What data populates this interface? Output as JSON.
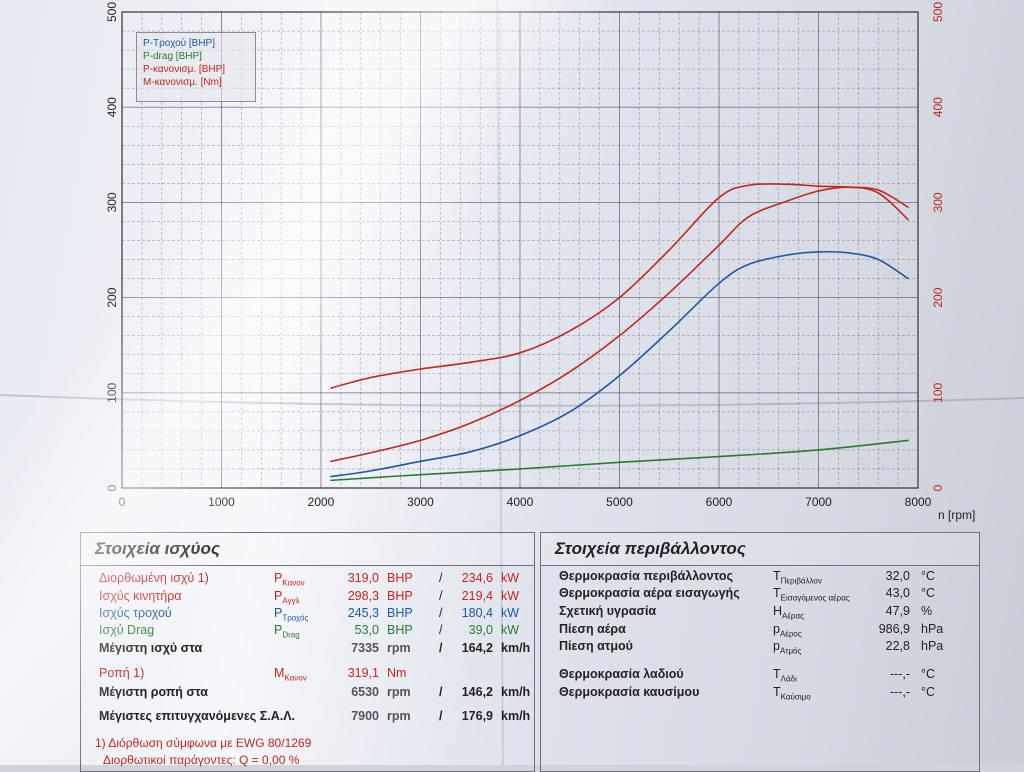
{
  "chart_data": {
    "type": "line",
    "xlabel": "n [rpm]",
    "x_ticks": [
      0,
      1000,
      2000,
      3000,
      4000,
      5000,
      6000,
      7000,
      8000
    ],
    "y_left_ticks": [
      0,
      100,
      200,
      300,
      400,
      500
    ],
    "y_right_ticks": [
      0,
      100,
      200,
      300,
      400,
      500
    ],
    "xlim": [
      0,
      8000
    ],
    "ylim": [
      0,
      500
    ],
    "grid": true,
    "legend_position": "top-left",
    "legend": [
      {
        "label": "P-Τροχού [BHP]",
        "color": "#1f56a8"
      },
      {
        "label": "P-drag [BHP]",
        "color": "#2a7b2d"
      },
      {
        "label": "P-κανονισμ. [BHP]",
        "color": "#c4261a"
      },
      {
        "label": "M-κανονισμ. [Nm]",
        "color": "#c4261a"
      }
    ],
    "series": [
      {
        "name": "P-Τροχού [BHP]",
        "color": "#1f56a8",
        "x": [
          2100,
          2500,
          3000,
          3500,
          4000,
          4500,
          5000,
          5500,
          6000,
          6300,
          6700,
          7000,
          7300,
          7600,
          7900
        ],
        "y": [
          12,
          18,
          28,
          38,
          55,
          80,
          118,
          165,
          215,
          235,
          245,
          248,
          247,
          240,
          220
        ]
      },
      {
        "name": "P-drag [BHP]",
        "color": "#2a7b2d",
        "x": [
          2100,
          3000,
          4000,
          5000,
          6000,
          7000,
          7900
        ],
        "y": [
          8,
          14,
          20,
          27,
          33,
          40,
          50
        ]
      },
      {
        "name": "P-κανονισμ. [BHP]",
        "color": "#c4261a",
        "x": [
          2100,
          2500,
          3000,
          3500,
          4000,
          4500,
          5000,
          5500,
          6000,
          6300,
          6700,
          7000,
          7300,
          7600,
          7900
        ],
        "y": [
          28,
          37,
          50,
          68,
          92,
          122,
          160,
          205,
          255,
          285,
          302,
          312,
          316,
          310,
          282
        ]
      },
      {
        "name": "M-κανονισμ. [Nm]",
        "color": "#c4261a",
        "x": [
          2100,
          2500,
          3000,
          3500,
          4000,
          4500,
          5000,
          5500,
          6000,
          6300,
          6700,
          7000,
          7300,
          7600,
          7900
        ],
        "y": [
          105,
          116,
          125,
          132,
          142,
          165,
          200,
          250,
          305,
          318,
          319,
          317,
          316,
          313,
          295
        ]
      }
    ]
  },
  "power": {
    "title": "Στοιχεία ισχύος",
    "rows": [
      {
        "label": "Διορθωμένη ισχύ 1)",
        "sym": "P",
        "sub": "Κανον",
        "val": "319,0",
        "unit": "BHP",
        "sep": "/",
        "val2": "234,6",
        "unit2": "kW",
        "color": "red"
      },
      {
        "label": "Ισχύς κινητήρα",
        "sym": "P",
        "sub": "Αγγλ",
        "val": "298,3",
        "unit": "BHP",
        "sep": "/",
        "val2": "219,4",
        "unit2": "kW",
        "color": "red"
      },
      {
        "label": "Ισχύς τροχού",
        "sym": "P",
        "sub": "Τροχός",
        "val": "245,3",
        "unit": "BHP",
        "sep": "/",
        "val2": "180,4",
        "unit2": "kW",
        "color": "blue"
      },
      {
        "label": "Ισχύ Drag",
        "sym": "P",
        "sub": "Drag",
        "val": "53,0",
        "unit": "BHP",
        "sep": "/",
        "val2": "39,0",
        "unit2": "kW",
        "color": "green"
      },
      {
        "label": "Μέγιστη ισχύ στα",
        "sym": "",
        "sub": "",
        "val": "7335",
        "unit": "rpm",
        "sep": "/",
        "val2": "164,2",
        "unit2": "km/h",
        "color": "black"
      },
      {
        "label": "Ροπή 1)",
        "sym": "M",
        "sub": "Κανον",
        "val": "319,1",
        "unit": "Nm",
        "sep": "",
        "val2": "",
        "unit2": "",
        "color": "red"
      },
      {
        "label": "Μέγιστη ροπή στα",
        "sym": "",
        "sub": "",
        "val": "6530",
        "unit": "rpm",
        "sep": "/",
        "val2": "146,2",
        "unit2": "km/h",
        "color": "black"
      },
      {
        "label": "Μέγιστες επιτυγχανόμενες Σ.Α.Λ.",
        "sym": "",
        "sub": "",
        "val": "7900",
        "unit": "rpm",
        "sep": "/",
        "val2": "176,9",
        "unit2": "km/h",
        "color": "black"
      }
    ],
    "footnote1": "1) Διόρθωση σύμφωνα με EWG 80/1269",
    "footnote2": "Διορθωτικοί παράγοντες: Q = 0,00 %"
  },
  "env": {
    "title": "Στοιχεία περιβάλλοντος",
    "rows": [
      {
        "label": "Θερμοκρασία περιβάλλοντος",
        "sym": "T",
        "sub": "Περιβάλλον",
        "val": "32,0",
        "unit": "°C"
      },
      {
        "label": "Θερμοκρασία αέρα εισαγωγής",
        "sym": "T",
        "sub": "Εισαγόμενος αέρας",
        "val": "43,0",
        "unit": "°C"
      },
      {
        "label": "Σχετική υγρασία",
        "sym": "H",
        "sub": "Αέρας",
        "val": "47,9",
        "unit": "%"
      },
      {
        "label": "Πίεση αέρα",
        "sym": "p",
        "sub": "Αέρος",
        "val": "986,9",
        "unit": "hPa"
      },
      {
        "label": "Πίεση ατμού",
        "sym": "p",
        "sub": "Ατμός",
        "val": "22,8",
        "unit": "hPa"
      },
      {
        "label": "Θερμοκρασία λαδιού",
        "sym": "T",
        "sub": "Λάδι",
        "val": "---,-",
        "unit": "°C"
      },
      {
        "label": "Θερμοκρασία καυσίμου",
        "sym": "T",
        "sub": "Καύσιμο",
        "val": "---,-",
        "unit": "°C"
      }
    ]
  },
  "colors": {
    "red": "#c4261a",
    "blue": "#1f56a8",
    "green": "#2a7b2d",
    "black": "#222222",
    "grid": "#5a5d66"
  }
}
